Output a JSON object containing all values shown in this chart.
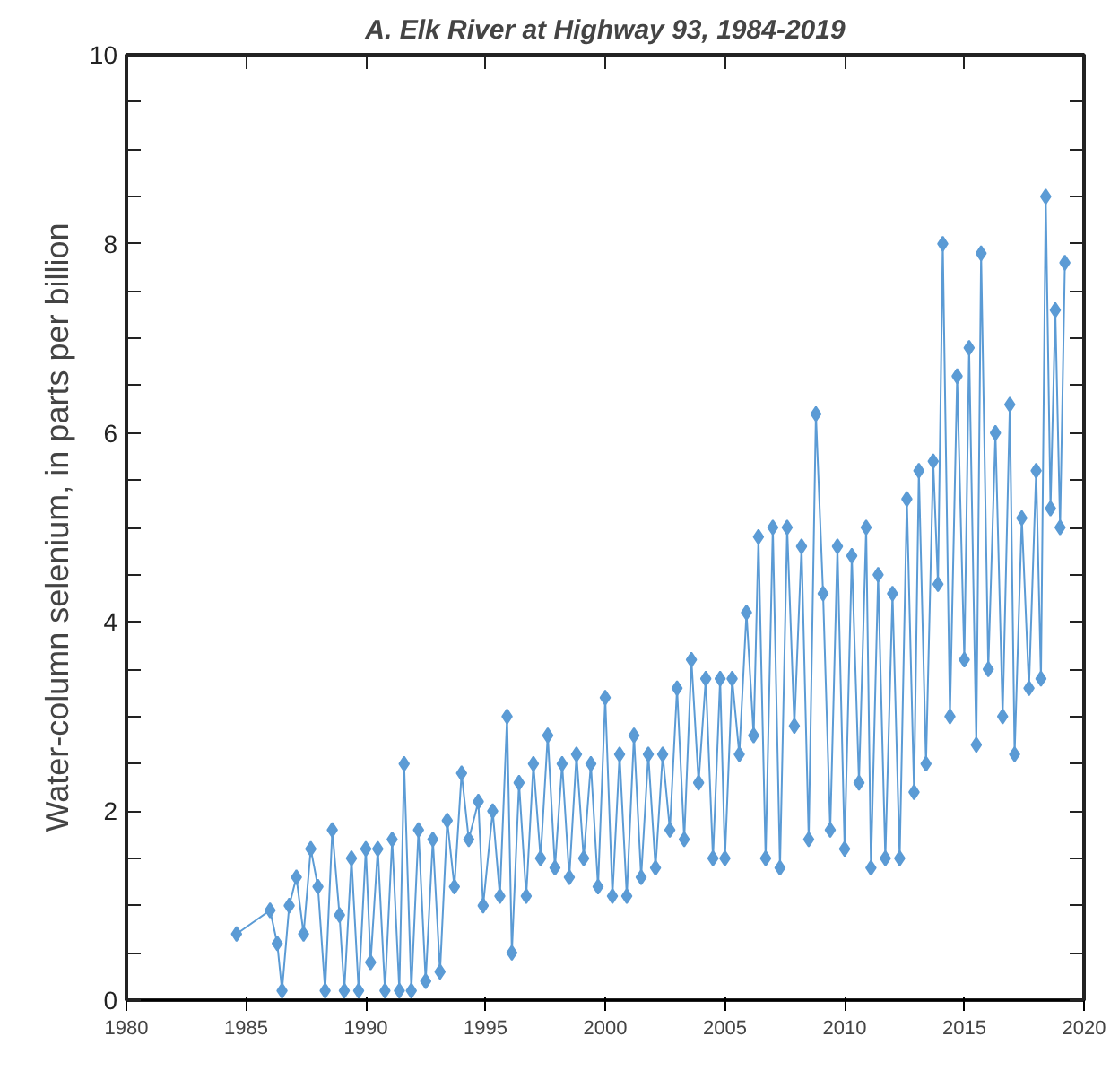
{
  "chart_data": {
    "type": "line",
    "title": "A. Elk River at Highway 93, 1984-2019",
    "ylabel": "Water-column selenium, in parts per billion",
    "marker": "diamond",
    "line_style": "solid",
    "grid": false,
    "xlim": [
      1980,
      2020
    ],
    "xticks": [
      1980,
      1985,
      1990,
      1995,
      2000,
      2005,
      2010,
      2015,
      2020
    ],
    "ylim": [
      0,
      10
    ],
    "yticks": [
      0,
      {
        "value": 0.5,
        "label": null
      },
      {
        "value": 1,
        "label": null
      },
      {
        "value": 1.5,
        "label": null
      },
      2,
      {
        "value": 2.5,
        "label": null
      },
      {
        "value": 3,
        "label": null
      },
      {
        "value": 3.5,
        "label": null
      },
      4,
      {
        "value": 4.5,
        "label": null
      },
      {
        "value": 5,
        "label": null
      },
      {
        "value": 5.5,
        "label": null
      },
      6,
      {
        "value": 6.5,
        "label": null
      },
      {
        "value": 7,
        "label": null
      },
      {
        "value": 7.5,
        "label": null
      },
      8,
      {
        "value": 8.5,
        "label": null
      },
      {
        "value": 9,
        "label": null
      },
      {
        "value": 9.5,
        "label": null
      },
      10
    ],
    "series": [
      {
        "color": "#5b9bd5",
        "x": [
          1984.6,
          1986.0,
          1986.3,
          1986.5,
          1986.8,
          1987.1,
          1987.4,
          1987.7,
          1988.0,
          1988.3,
          1988.6,
          1988.9,
          1989.1,
          1989.4,
          1989.7,
          1990.0,
          1990.2,
          1990.5,
          1990.8,
          1991.1,
          1991.4,
          1991.6,
          1991.9,
          1992.2,
          1992.5,
          1992.8,
          1993.1,
          1993.4,
          1993.7,
          1994.0,
          1994.3,
          1994.7,
          1994.9,
          1995.3,
          1995.6,
          1995.9,
          1996.1,
          1996.4,
          1996.7,
          1997.0,
          1997.3,
          1997.6,
          1997.9,
          1998.2,
          1998.5,
          1998.8,
          1999.1,
          1999.4,
          1999.7,
          2000.0,
          2000.3,
          2000.6,
          2000.9,
          2001.2,
          2001.5,
          2001.8,
          2002.1,
          2002.4,
          2002.7,
          2003.0,
          2003.3,
          2003.6,
          2003.9,
          2004.2,
          2004.5,
          2004.8,
          2005.0,
          2005.3,
          2005.6,
          2005.9,
          2006.2,
          2006.4,
          2006.7,
          2007.0,
          2007.3,
          2007.6,
          2007.9,
          2008.2,
          2008.5,
          2008.8,
          2009.1,
          2009.4,
          2009.7,
          2010.0,
          2010.3,
          2010.6,
          2010.9,
          2011.1,
          2011.4,
          2011.7,
          2012.0,
          2012.3,
          2012.6,
          2012.9,
          2013.1,
          2013.4,
          2013.7,
          2013.9,
          2014.1,
          2014.4,
          2014.7,
          2015.0,
          2015.2,
          2015.5,
          2015.7,
          2016.0,
          2016.3,
          2016.6,
          2016.9,
          2017.1,
          2017.4,
          2017.7,
          2018.0,
          2018.2,
          2018.4,
          2018.6,
          2018.8,
          2019.0,
          2019.2
        ],
        "values": [
          0.7,
          0.95,
          0.6,
          0.1,
          1.0,
          1.3,
          0.7,
          1.6,
          1.2,
          0.1,
          1.8,
          0.9,
          0.1,
          1.5,
          0.1,
          1.6,
          0.4,
          1.6,
          0.1,
          1.7,
          0.1,
          2.5,
          0.1,
          1.8,
          0.2,
          1.7,
          0.3,
          1.9,
          1.2,
          2.4,
          1.7,
          2.1,
          1.0,
          2.0,
          1.1,
          3.0,
          0.5,
          2.3,
          1.1,
          2.5,
          1.5,
          2.8,
          1.4,
          2.5,
          1.3,
          2.6,
          1.5,
          2.5,
          1.2,
          3.2,
          1.1,
          2.6,
          1.1,
          2.8,
          1.3,
          2.6,
          1.4,
          2.6,
          1.8,
          3.3,
          1.7,
          3.6,
          2.3,
          3.4,
          1.5,
          3.4,
          1.5,
          3.4,
          2.6,
          4.1,
          2.8,
          4.9,
          1.5,
          5.0,
          1.4,
          5.0,
          2.9,
          4.8,
          1.7,
          6.2,
          4.3,
          1.8,
          4.8,
          1.6,
          4.7,
          2.3,
          5.0,
          1.4,
          4.5,
          1.5,
          4.3,
          1.5,
          5.3,
          2.2,
          5.6,
          2.5,
          5.7,
          4.4,
          8.0,
          3.0,
          6.6,
          3.6,
          6.9,
          2.7,
          7.9,
          3.5,
          6.0,
          3.0,
          6.3,
          2.6,
          5.1,
          3.3,
          5.6,
          3.4,
          8.5,
          5.2,
          7.3,
          5.0,
          7.8
        ]
      }
    ]
  }
}
